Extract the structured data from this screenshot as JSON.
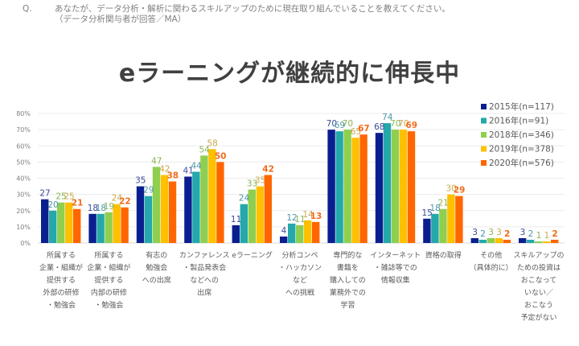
{
  "question": {
    "mark": "Q.",
    "text": "あなたが、データ分析・解析に関わるスキルアップのために現在取り組んでいることを教えてください。",
    "sub": "（データ分析関与者が回答／MA）"
  },
  "headline": "eラーニングが継続的に伸長中",
  "chart_data": {
    "type": "bar",
    "title": "eラーニングが継続的に伸長中",
    "xlabel": "",
    "ylabel": "",
    "ylim": [
      0,
      80
    ],
    "yticks": [
      "0%",
      "10%",
      "20%",
      "30%",
      "40%",
      "50%",
      "60%",
      "70%",
      "80%"
    ],
    "grid": true,
    "legend_position": "top-right",
    "categories": [
      [
        "所属する",
        "企業・組織が",
        "提供する",
        "外部の研修",
        "・勉強会"
      ],
      [
        "所属する",
        "企業・組織が",
        "提供する",
        "内部の研修",
        "・勉強会"
      ],
      [
        "有志の",
        "勉強会",
        "への出席"
      ],
      [
        "カンファレンス",
        "・製品発表会",
        "などへの",
        "出席"
      ],
      [
        "eラーニング"
      ],
      [
        "分析コンペ",
        "・ハッカソン",
        "など",
        "への挑戦"
      ],
      [
        "専門的な",
        "書籍を",
        "購入しての",
        "業務外での",
        "学習"
      ],
      [
        "インターネット",
        "・雑誌等での",
        "情報収集"
      ],
      [
        "資格の取得"
      ],
      [
        "その他",
        "（具体的に）"
      ],
      [
        "スキルアップの",
        "ための投資は",
        "おこなって",
        "いない／",
        "おこなう",
        "予定がない"
      ]
    ],
    "series": [
      {
        "name": "2015年(n=117)",
        "color": "#0a1f8f",
        "label_color": "#3c4a9a",
        "bold": false,
        "values": [
          27,
          18,
          35,
          41,
          11,
          4,
          70,
          68,
          15,
          3,
          3
        ]
      },
      {
        "name": "2016年(n=91)",
        "color": "#24a8ab",
        "label_color": "#4c95a8",
        "bold": false,
        "values": [
          20,
          18,
          29,
          44,
          24,
          12,
          69,
          74,
          18,
          2,
          2
        ]
      },
      {
        "name": "2018年(n=346)",
        "color": "#8fcf4f",
        "label_color": "#89b356",
        "bold": false,
        "values": [
          25,
          19,
          47,
          54,
          33,
          11,
          70,
          70,
          21,
          3,
          1
        ]
      },
      {
        "name": "2019年(n=378)",
        "color": "#ffc000",
        "label_color": "#c9a94a",
        "bold": false,
        "values": [
          25,
          24,
          42,
          58,
          35,
          14,
          65,
          70,
          30,
          3,
          1
        ]
      },
      {
        "name": "2020年(n=576)",
        "color": "#ff6600",
        "label_color": "#f26b1d",
        "bold": true,
        "values": [
          21,
          22,
          38,
          50,
          42,
          13,
          67,
          69,
          29,
          2,
          2
        ]
      }
    ]
  }
}
